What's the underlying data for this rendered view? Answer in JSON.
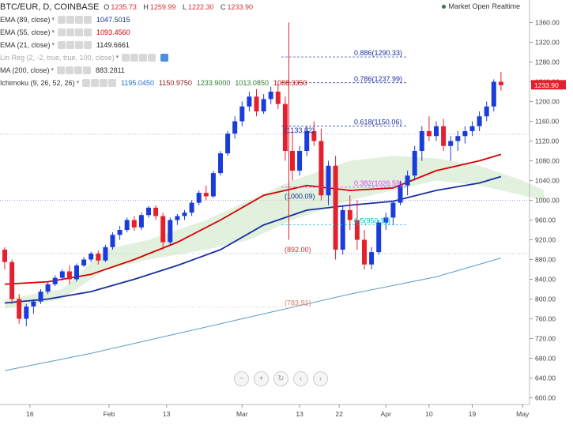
{
  "header": {
    "symbol": "BTC/EUR, D, COINBASE",
    "ohlc": [
      {
        "label": "O",
        "value": "1235.73"
      },
      {
        "label": "H",
        "value": "1259.99"
      },
      {
        "label": "L",
        "value": "1222.30"
      },
      {
        "label": "C",
        "value": "1233.90"
      }
    ],
    "status": "Market Open",
    "status_mode": "Realtime"
  },
  "indicators": [
    {
      "name": "EMA (89, close)",
      "values": [
        "1047.5015"
      ],
      "colors": [
        "#1a2fa0"
      ]
    },
    {
      "name": "EMA (55, close)",
      "values": [
        "1093.4560"
      ],
      "colors": [
        "#d50000"
      ]
    },
    {
      "name": "EMA (21, close)",
      "values": [
        "1149.6661"
      ],
      "colors": [
        "#222222"
      ]
    },
    {
      "name": "Lin Reg (2, -2, true, true, 100, close)",
      "values": [],
      "colors": [],
      "muted": true
    },
    {
      "name": "MA (200, close)",
      "values": [
        "883.2811"
      ],
      "colors": [
        "#333333"
      ]
    },
    {
      "name": "Ichimoku (9, 26, 52, 26)",
      "values": [
        "1195.0450",
        "1150.9750",
        "1233.9000",
        "1013.0850",
        "1088.3350"
      ],
      "colors": [
        "#1e6fd9",
        "#8b1a1a",
        "#2e7d32",
        "#2e7d32",
        "#d50000"
      ]
    }
  ],
  "price_label": "1233.90",
  "fib_labels": [
    {
      "text": "0.886(1290.33)",
      "price": 1290.33,
      "color": "#1a2fa0"
    },
    {
      "text": "0.786(1237.99)",
      "price": 1237.99,
      "color": "#1a2fa0"
    },
    {
      "text": "0.618(1150.06)",
      "price": 1150.06,
      "color": "#1a2fa0"
    },
    {
      "text": "(1133.82)",
      "price": 1133.82,
      "color": "#1a2fa0"
    },
    {
      "text": "(1000.09)",
      "price": 1000.09,
      "color": "#1a2fa0"
    },
    {
      "text": "0.382(1026.59)",
      "price": 1026.59,
      "color": "#e040fb"
    },
    {
      "text": "0.5(950.12)",
      "price": 950.12,
      "color": "#00bcd4"
    },
    {
      "text": "(892.00)",
      "price": 892.0,
      "color": "#d32f2f"
    },
    {
      "text": "(783.91)",
      "price": 783.91,
      "color": "#d88060"
    }
  ],
  "nav_icons": [
    "minus-icon",
    "plus-icon",
    "reset-icon",
    "back-icon",
    "forward-icon"
  ],
  "chart_data": {
    "type": "candlestick",
    "ylim": [
      580,
      1380
    ],
    "y_ticks": [
      600,
      640,
      680,
      720,
      760,
      800,
      840,
      880,
      920,
      960,
      1000,
      1040,
      1080,
      1120,
      1160,
      1200,
      1240,
      1280,
      1320,
      1360
    ],
    "x_ticks": [
      "16",
      "Feb",
      "13",
      "Mar",
      "13",
      "22",
      "Apr",
      "10",
      "19",
      "May"
    ],
    "colors": {
      "up": "#1a3cd9",
      "down": "#e5202d"
    },
    "candles": [
      [
        900,
        905,
        860,
        875
      ],
      [
        875,
        880,
        790,
        800
      ],
      [
        800,
        810,
        750,
        760
      ],
      [
        760,
        790,
        745,
        785
      ],
      [
        785,
        800,
        770,
        795
      ],
      [
        795,
        820,
        790,
        815
      ],
      [
        815,
        835,
        810,
        830
      ],
      [
        830,
        848,
        826,
        843
      ],
      [
        843,
        860,
        838,
        856
      ],
      [
        856,
        868,
        830,
        840
      ],
      [
        840,
        872,
        835,
        868
      ],
      [
        868,
        885,
        865,
        880
      ],
      [
        880,
        896,
        875,
        892
      ],
      [
        892,
        898,
        870,
        878
      ],
      [
        878,
        910,
        875,
        905
      ],
      [
        905,
        935,
        900,
        930
      ],
      [
        930,
        948,
        920,
        940
      ],
      [
        940,
        965,
        935,
        960
      ],
      [
        960,
        968,
        938,
        945
      ],
      [
        945,
        975,
        940,
        970
      ],
      [
        970,
        988,
        965,
        985
      ],
      [
        985,
        990,
        960,
        968
      ],
      [
        968,
        975,
        900,
        915
      ],
      [
        915,
        965,
        910,
        960
      ],
      [
        960,
        972,
        950,
        968
      ],
      [
        968,
        980,
        960,
        975
      ],
      [
        975,
        1000,
        968,
        995
      ],
      [
        995,
        1020,
        990,
        1015
      ],
      [
        1015,
        1030,
        1000,
        1008
      ],
      [
        1008,
        1060,
        1005,
        1055
      ],
      [
        1055,
        1100,
        1050,
        1095
      ],
      [
        1095,
        1140,
        1090,
        1135
      ],
      [
        1135,
        1170,
        1125,
        1160
      ],
      [
        1160,
        1200,
        1150,
        1190
      ],
      [
        1190,
        1220,
        1180,
        1210
      ],
      [
        1210,
        1225,
        1170,
        1180
      ],
      [
        1180,
        1215,
        1175,
        1205
      ],
      [
        1205,
        1230,
        1195,
        1220
      ],
      [
        1220,
        1235,
        1185,
        1195
      ],
      [
        1195,
        1210,
        1080,
        1100
      ],
      [
        1100,
        1140,
        1040,
        1060
      ],
      [
        1060,
        1110,
        1050,
        1100
      ],
      [
        1100,
        1150,
        1090,
        1140
      ],
      [
        1140,
        1160,
        1110,
        1120
      ],
      [
        1120,
        1145,
        1000,
        1010
      ],
      [
        1010,
        1080,
        990,
        1070
      ],
      [
        1070,
        1090,
        880,
        900
      ],
      [
        900,
        990,
        890,
        980
      ],
      [
        980,
        1010,
        940,
        960
      ],
      [
        960,
        1000,
        900,
        920
      ],
      [
        920,
        940,
        860,
        870
      ],
      [
        870,
        905,
        860,
        895
      ],
      [
        895,
        960,
        890,
        955
      ],
      [
        955,
        975,
        940,
        965
      ],
      [
        965,
        1000,
        950,
        995
      ],
      [
        995,
        1040,
        990,
        1030
      ],
      [
        1030,
        1060,
        1010,
        1050
      ],
      [
        1050,
        1110,
        1040,
        1100
      ],
      [
        1100,
        1150,
        1080,
        1140
      ],
      [
        1140,
        1170,
        1120,
        1130
      ],
      [
        1130,
        1160,
        1120,
        1150
      ],
      [
        1150,
        1165,
        1100,
        1110
      ],
      [
        1110,
        1130,
        1080,
        1120
      ],
      [
        1120,
        1140,
        1100,
        1130
      ],
      [
        1130,
        1150,
        1115,
        1140
      ],
      [
        1140,
        1160,
        1130,
        1150
      ],
      [
        1150,
        1180,
        1140,
        1170
      ],
      [
        1170,
        1200,
        1160,
        1190
      ],
      [
        1190,
        1245,
        1180,
        1240
      ],
      [
        1240,
        1260,
        1222,
        1233
      ]
    ],
    "ema89": [
      [
        0,
        792
      ],
      [
        6,
        800
      ],
      [
        12,
        815
      ],
      [
        18,
        840
      ],
      [
        24,
        868
      ],
      [
        30,
        900
      ],
      [
        36,
        950
      ],
      [
        42,
        980
      ],
      [
        48,
        990
      ],
      [
        54,
        998
      ],
      [
        60,
        1020
      ],
      [
        66,
        1035
      ],
      [
        69,
        1048
      ]
    ],
    "ema55": [
      [
        0,
        830
      ],
      [
        6,
        835
      ],
      [
        12,
        850
      ],
      [
        18,
        880
      ],
      [
        24,
        915
      ],
      [
        30,
        960
      ],
      [
        36,
        1010
      ],
      [
        42,
        1030
      ],
      [
        48,
        1020
      ],
      [
        54,
        1025
      ],
      [
        60,
        1060
      ],
      [
        66,
        1080
      ],
      [
        69,
        1093
      ]
    ],
    "ma200": [
      [
        0,
        655
      ],
      [
        12,
        690
      ],
      [
        24,
        730
      ],
      [
        36,
        770
      ],
      [
        48,
        810
      ],
      [
        60,
        845
      ],
      [
        69,
        883
      ]
    ]
  }
}
